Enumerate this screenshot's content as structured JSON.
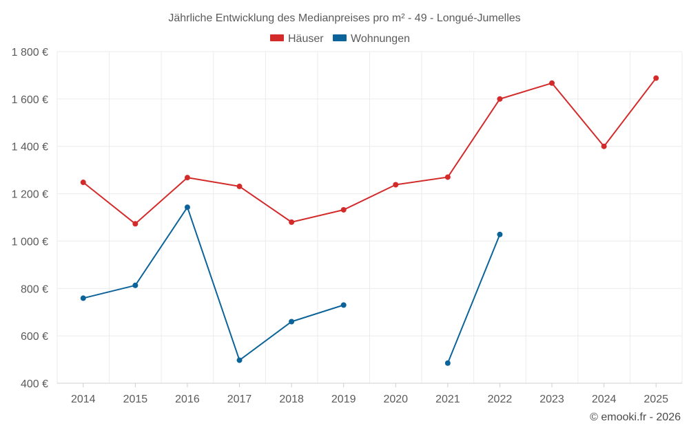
{
  "chart_data": {
    "type": "line",
    "title": "Jährliche Entwicklung des Medianpreises pro m² - 49 - Longué-Jumelles",
    "categories": [
      "2014",
      "2015",
      "2016",
      "2017",
      "2018",
      "2019",
      "2020",
      "2021",
      "2022",
      "2023",
      "2024",
      "2025"
    ],
    "y_tick_values": [
      400,
      600,
      800,
      1000,
      1200,
      1400,
      1600,
      1800
    ],
    "y_tick_labels": [
      "400 €",
      "600 €",
      "800 €",
      "1 000 €",
      "1 200 €",
      "1 400 €",
      "1 600 €",
      "1 800 €"
    ],
    "ylim": [
      400,
      1800
    ],
    "grid": true,
    "legend_position": "top-center",
    "series": [
      {
        "name": "Häuser",
        "color": "#d32a2a",
        "values": [
          1248,
          1073,
          1268,
          1231,
          1080,
          1132,
          1238,
          1270,
          1600,
          1667,
          1400,
          1688
        ]
      },
      {
        "name": "Wohnungen",
        "color": "#0b6399",
        "values": [
          759,
          813,
          1143,
          497,
          660,
          730,
          null,
          485,
          1028,
          null,
          null,
          null
        ]
      }
    ],
    "footer": "© emooki.fr - 2026"
  }
}
